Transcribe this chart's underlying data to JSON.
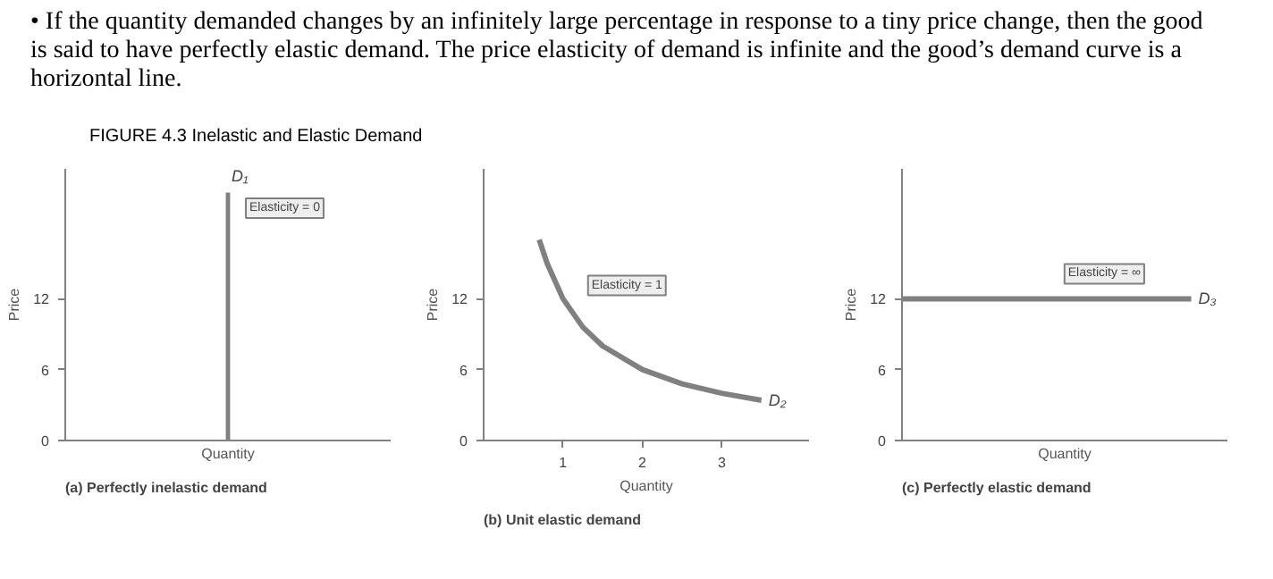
{
  "chart_data": [
    {
      "type": "bar",
      "title": "FIGURE 4.3    Inelastic and Elastic Demand",
      "subtitle": "(a) Perfectly inelastic demand",
      "xlabel": "Quantity",
      "ylabel": "Price",
      "categories": [
        null,
        null,
        null,
        null,
        null
      ],
      "ylim": [
        0,
        23
      ],
      "yticks": [
        0,
        6,
        12
      ],
      "series": [
        {
          "name": "D₁",
          "color": "#808080",
          "values": [
            null,
            null,
            21,
            null,
            null
          ]
        }
      ],
      "annotations": [
        "• If the quantity demanded changes by an infinitely large percentage in response to a tiny price change, then the good is said to have perfectly elastic demand. The price elasticity of demand is infinite  and the good’s demand curve is a horizontal line.",
        "Elasticity = 0"
      ]
    },
    {
      "type": "line",
      "subtitle": "(b) Unit elastic demand",
      "xlabel": "Quantity",
      "ylabel": "Price",
      "x": [
        0.7,
        0.8,
        1,
        1.25,
        1.5,
        2,
        2.5,
        3,
        3.5
      ],
      "xlim": [
        0,
        4.1
      ],
      "xticks": [
        1,
        2,
        3
      ],
      "ylim": [
        0,
        23
      ],
      "yticks": [
        0,
        6,
        12
      ],
      "series": [
        {
          "name": "D₂",
          "color": "#808080",
          "values": [
            17,
            15,
            12,
            9.6,
            8,
            6,
            4.8,
            4,
            3.4
          ]
        }
      ],
      "annotations": [
        {
          "text": "Elasticity = 1",
          "x": 1.09,
          "y": 11
        }
      ]
    },
    {
      "type": "line",
      "subtitle": "(c) Perfectly elastic demand",
      "xlabel": "Quantity",
      "ylabel": "Price",
      "categories": [
        null,
        null,
        null,
        null,
        null,
        null,
        null,
        null,
        null
      ],
      "ylim": [
        0,
        23
      ],
      "yticks": [
        0,
        6,
        12
      ],
      "series": [
        {
          "name": "D₃",
          "color": "#808080",
          "values": [
            12,
            12,
            12,
            12,
            12,
            12,
            12,
            12,
            12
          ]
        }
      ],
      "annotations": [
        {
          "text": "Elasticity = ∞",
          "y": 12
        }
      ]
    }
  ]
}
